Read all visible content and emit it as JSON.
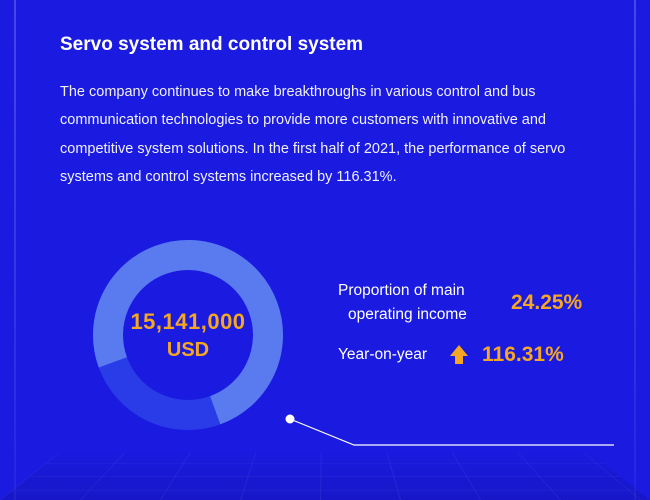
{
  "colors": {
    "background": "#1a1ae0",
    "text": "#ffffff",
    "accent": "#f5a623",
    "donut_track": "#2a3be8",
    "donut_fill": "#5a7af0",
    "callout_line": "#ffffff",
    "callout_dot": "#ffffff"
  },
  "title": "Servo system and control system",
  "description": "The company continues to make breakthroughs in various control and bus communication technologies to provide more customers with innovative and competitive system solutions. In the first half of 2021, the performance of servo systems and control systems increased by 116.31%.",
  "donut": {
    "value": "15,141,000",
    "unit": "USD",
    "percent_fill": 75,
    "thickness": 30,
    "radius": 80,
    "start_angle_deg": -200
  },
  "stats": [
    {
      "label_line1": "Proportion of main",
      "label_line2": "operating income",
      "value": "24.25%",
      "arrow": false
    },
    {
      "label_line1": "Year-on-year",
      "label_line2": "",
      "value": "116.31%",
      "arrow": true
    }
  ],
  "typography": {
    "title_fontsize": 19,
    "desc_fontsize": 14.5,
    "donut_value_fontsize": 22,
    "donut_unit_fontsize": 20,
    "stat_label_fontsize": 15.5,
    "stat_value_fontsize": 21
  }
}
